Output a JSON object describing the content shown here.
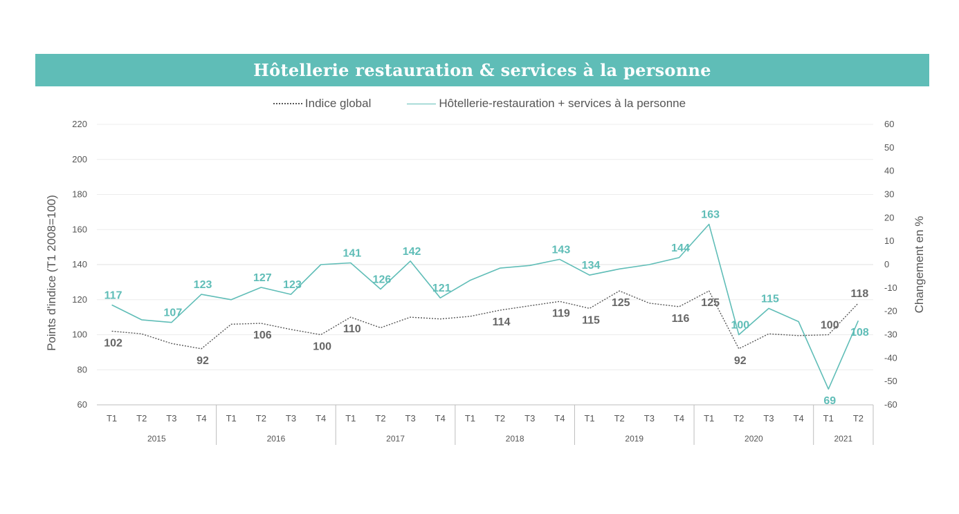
{
  "header": {
    "title": "Hôtellerie  restauration & services à la personne"
  },
  "chart_data": {
    "type": "line",
    "categories": [
      "T1",
      "T2",
      "T3",
      "T4",
      "T1",
      "T2",
      "T3",
      "T4",
      "T1",
      "T2",
      "T3",
      "T4",
      "T1",
      "T2",
      "T3",
      "T4",
      "T1",
      "T2",
      "T3",
      "T4",
      "T1",
      "T2",
      "T3",
      "T4",
      "T1",
      "T2"
    ],
    "years": [
      {
        "label": "2015",
        "count": 4
      },
      {
        "label": "2016",
        "count": 4
      },
      {
        "label": "2017",
        "count": 4
      },
      {
        "label": "2018",
        "count": 4
      },
      {
        "label": "2019",
        "count": 4
      },
      {
        "label": "2020",
        "count": 4
      },
      {
        "label": "2021",
        "count": 2
      }
    ],
    "series": [
      {
        "name": "Indice global",
        "axis": "left",
        "style": "dotted",
        "color": "#555555",
        "values": [
          102,
          100.5,
          95,
          92,
          106,
          106.5,
          103,
          100,
          110,
          104,
          110,
          109,
          110.5,
          114,
          116.5,
          119,
          115,
          125,
          118,
          116,
          125,
          92,
          100.5,
          99.5,
          100,
          118
        ],
        "labels": [
          "102",
          null,
          null,
          "92",
          null,
          "106",
          null,
          "100",
          "110",
          null,
          null,
          null,
          null,
          "114",
          null,
          "119",
          "115",
          "125",
          null,
          "116",
          "125",
          "92",
          null,
          null,
          "100",
          "118"
        ]
      },
      {
        "name": "Hôtellerie-restauration + services à la personne",
        "axis": "left",
        "style": "solid",
        "color": "#5fbdb7",
        "values": [
          117,
          108.5,
          107,
          123,
          120,
          127,
          123,
          140,
          141,
          126,
          142,
          121,
          131,
          138,
          139.5,
          143,
          134,
          137.5,
          140,
          144,
          163,
          100,
          115,
          107.5,
          69,
          108
        ],
        "labels": [
          "117",
          null,
          "107",
          "123",
          null,
          "127",
          "123",
          null,
          "141",
          "126",
          "142",
          "121",
          null,
          null,
          null,
          "143",
          "134",
          null,
          null,
          "144",
          "163",
          "100",
          "115",
          null,
          "69",
          "108"
        ]
      }
    ],
    "ylabel": "Points d'indice (T1 2008=100)",
    "ylim": [
      60,
      220
    ],
    "yticks": [
      "60",
      "80",
      "100",
      "120",
      "140",
      "160",
      "180",
      "200",
      "220"
    ],
    "y2label": "Changement en %",
    "y2lim": [
      -60,
      60
    ],
    "y2ticks": [
      "-60",
      "-50",
      "-40",
      "-30",
      "-20",
      "-10",
      "0",
      "10",
      "20",
      "30",
      "40",
      "50",
      "60"
    ],
    "grid": true,
    "legend_position": "top-center"
  }
}
